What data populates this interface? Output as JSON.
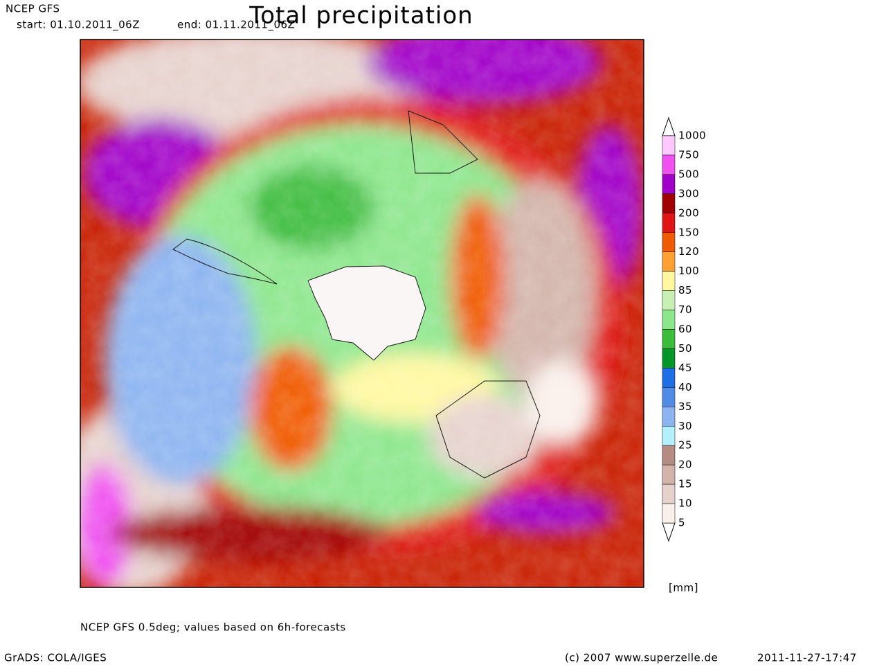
{
  "header": {
    "model": "NCEP GFS",
    "start": "start: 01.10.2011_06Z",
    "end": "end: 01.11.2011_06Z",
    "title": "Total precipitation"
  },
  "legend": {
    "unit": "[mm]",
    "levels": [
      1000,
      750,
      500,
      300,
      200,
      150,
      120,
      100,
      85,
      70,
      60,
      50,
      45,
      40,
      35,
      30,
      25,
      20,
      15,
      10,
      5
    ],
    "colors": [
      "#ffc8ff",
      "#f050f0",
      "#a000c8",
      "#a00000",
      "#e01414",
      "#f05a00",
      "#ffa032",
      "#fff8a0",
      "#c8f0b4",
      "#8ce68c",
      "#3cbc3c",
      "#009628",
      "#1e6ee6",
      "#508ce6",
      "#8cb4f0",
      "#b4f0fa",
      "#b48c82",
      "#d2b4aa",
      "#e6d2cd",
      "#faf0eb"
    ]
  },
  "footer": {
    "note": "NCEP GFS 0.5deg; values based on 6h-forecasts",
    "software": "GrADS: COLA/IGES",
    "copyright": "(c) 2007 www.superzelle.de",
    "timestamp": "2011-11-27-17:47"
  }
}
